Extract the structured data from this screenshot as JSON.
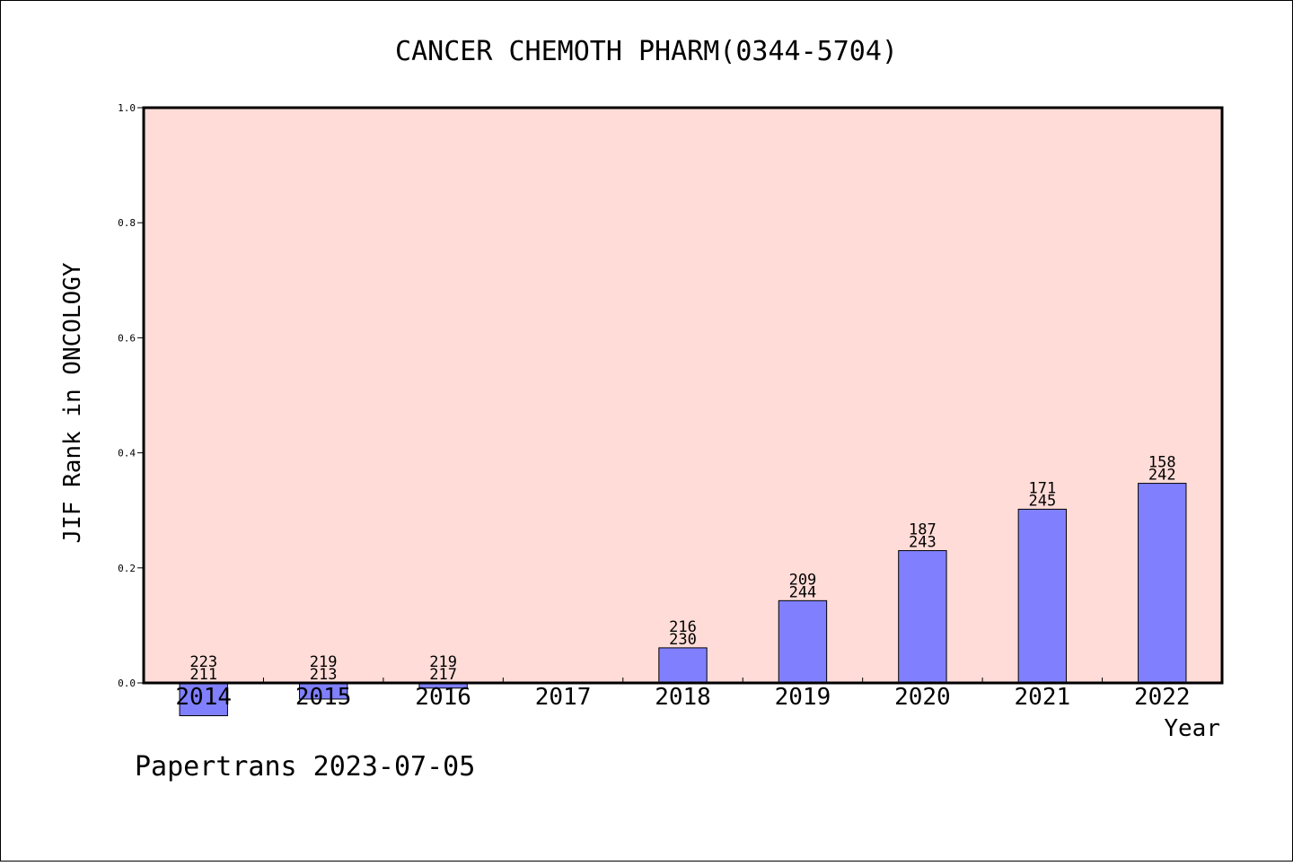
{
  "chart_data": {
    "type": "bar",
    "title": "CANCER CHEMOTH PHARM(0344-5704)",
    "xlabel": "Year",
    "ylabel": "JIF Rank in ONCOLOGY",
    "footer": "Papertrans 2023-07-05",
    "ylim": [
      0.0,
      1.0
    ],
    "yticks": [
      "0.0",
      "0.2",
      "0.4",
      "0.6",
      "0.8",
      "1.0"
    ],
    "grid": false,
    "legend": "none",
    "categories": [
      "2014",
      "2015",
      "2016",
      "2017",
      "2018",
      "2019",
      "2020",
      "2021",
      "2022"
    ],
    "values": [
      -0.057,
      -0.028,
      -0.009,
      0.0,
      0.061,
      0.143,
      0.23,
      0.302,
      0.347
    ],
    "rank_labels": [
      "223",
      "219",
      "219",
      "",
      "216",
      "209",
      "187",
      "171",
      "158"
    ],
    "total_labels": [
      "211",
      "213",
      "217",
      "",
      "230",
      "244",
      "243",
      "245",
      "242"
    ],
    "colors": {
      "plot_background": "#FFDCD8",
      "bar_fill": "#8080FF",
      "bar_stroke": "#000000",
      "page_background": "#FFFFFF"
    }
  }
}
